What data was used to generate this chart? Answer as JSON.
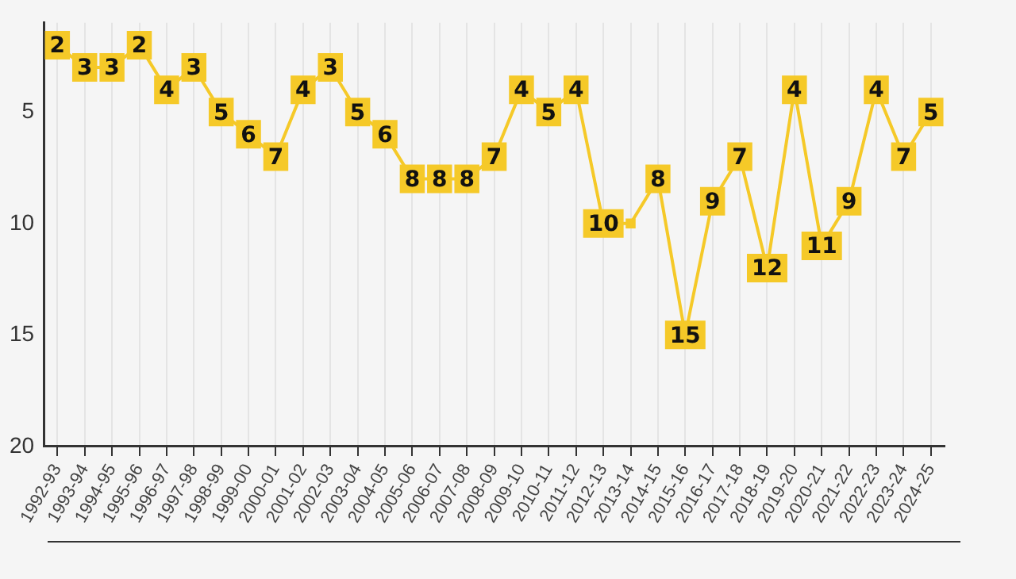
{
  "chart_data": {
    "type": "line",
    "categories": [
      "1992-93",
      "1993-94",
      "1994-95",
      "1995-96",
      "1996-97",
      "1997-98",
      "1998-99",
      "1999-00",
      "2000-01",
      "2001-02",
      "2002-03",
      "2003-04",
      "2004-05",
      "2005-06",
      "2006-07",
      "2007-08",
      "2008-09",
      "2009-10",
      "2010-11",
      "2011-12",
      "2012-13",
      "2013-14",
      "2014-15",
      "2015-16",
      "2016-17",
      "2017-18",
      "2018-19",
      "2019-20",
      "2020-21",
      "2021-22",
      "2022-23",
      "2023-24",
      "2024-25"
    ],
    "series": [
      {
        "color": "#f5c928",
        "values": [
          2,
          3,
          3,
          2,
          4,
          3,
          5,
          6,
          7,
          4,
          3,
          5,
          6,
          8,
          8,
          8,
          7,
          4,
          5,
          4,
          10,
          10,
          8,
          15,
          9,
          7,
          12,
          4,
          11,
          9,
          4,
          7,
          5
        ],
        "value_labels": [
          "2",
          "3",
          "3",
          "2",
          "4",
          "3",
          "5",
          "6",
          "7",
          "4",
          "3",
          "5",
          "6",
          "8",
          "8",
          "8",
          "7",
          "4",
          "5",
          "4",
          "10",
          null,
          "8",
          "15",
          "9",
          "7",
          "12",
          "4",
          "11",
          "9",
          "4",
          "7",
          "5"
        ]
      }
    ],
    "ylim": [
      20,
      1
    ],
    "yticks": [
      5,
      10,
      15,
      20
    ],
    "grid": "x",
    "legend": false,
    "marker": "square",
    "line_style": "solid"
  }
}
